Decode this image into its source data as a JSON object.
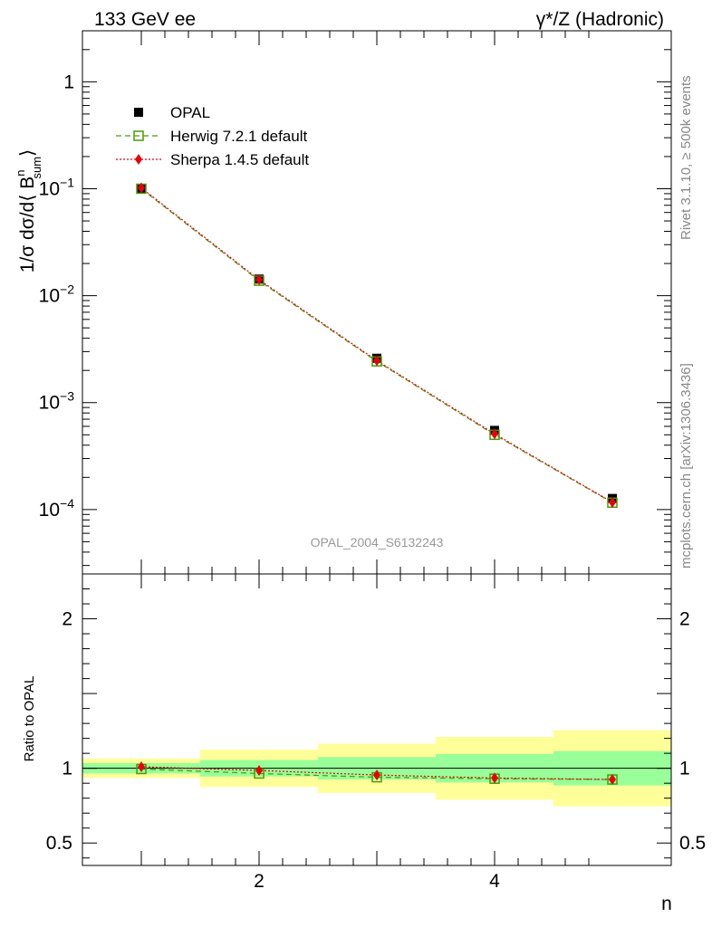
{
  "header": {
    "left": "133 GeV ee",
    "right": "γ*/Z (Hadronic)"
  },
  "side_labels": {
    "rivet": "Rivet 3.1.10, ≥ 500k events",
    "mcplots": "mcplots.cern.ch [arXiv:1306.3436]"
  },
  "analysis_id": "OPAL_2004_S6132243",
  "chart_data": [
    {
      "type": "scatter",
      "panel": "main",
      "yscale": "log",
      "ylabel": {
        "main": "1/σ dσ/d⟨ B",
        "sup": "n",
        "sub": "sum",
        "close": "⟩"
      },
      "xlim": [
        0.5,
        5.5
      ],
      "ylim": [
        2.5e-05,
        3
      ],
      "yticks": [
        {
          "value": 1,
          "label": "1"
        },
        {
          "value": 0.1,
          "base": "10",
          "exp": "−1"
        },
        {
          "value": 0.01,
          "base": "10",
          "exp": "−2"
        },
        {
          "value": 0.001,
          "base": "10",
          "exp": "−3"
        },
        {
          "value": 0.0001,
          "base": "10",
          "exp": "−4"
        }
      ],
      "x": [
        1,
        2,
        3,
        4,
        5
      ],
      "series": [
        {
          "name": "OPAL",
          "color": "#000000",
          "marker": "square",
          "values": [
            0.101,
            0.0143,
            0.0026,
            0.00055,
            0.000127
          ]
        },
        {
          "name": "Herwig 7.2.1 default",
          "color": "#4a9a0a",
          "marker": "open-square",
          "line": "dashed",
          "values": [
            0.1,
            0.0138,
            0.00243,
            0.0005,
            0.000116
          ]
        },
        {
          "name": "Sherpa 1.4.5 default",
          "color": "#e8000b",
          "marker": "diamond",
          "line": "dotted",
          "values": [
            0.102,
            0.0141,
            0.00247,
            0.00051,
            0.000117
          ]
        }
      ]
    },
    {
      "type": "scatter",
      "panel": "ratio",
      "ylabel": "Ratio to OPAL",
      "xlabel": "n",
      "xlim": [
        0.5,
        5.5
      ],
      "ylim": [
        0.35,
        2.3
      ],
      "xticks": [
        {
          "value": 2,
          "label": "2"
        },
        {
          "value": 4,
          "label": "4"
        }
      ],
      "yticks": [
        {
          "value": 0.5,
          "label": "0.5"
        },
        {
          "value": 1,
          "label": "1"
        },
        {
          "value": 2,
          "label": "2"
        }
      ],
      "x": [
        1,
        2,
        3,
        4,
        5
      ],
      "bands": [
        {
          "x0": 0.5,
          "x1": 1.5,
          "stat": [
            0.965,
            1.035
          ],
          "total": [
            0.935,
            1.065
          ]
        },
        {
          "x0": 1.5,
          "x1": 2.5,
          "stat": [
            0.945,
            1.055
          ],
          "total": [
            0.875,
            1.125
          ]
        },
        {
          "x0": 2.5,
          "x1": 3.5,
          "stat": [
            0.925,
            1.075
          ],
          "total": [
            0.835,
            1.165
          ]
        },
        {
          "x0": 3.5,
          "x1": 4.5,
          "stat": [
            0.905,
            1.095
          ],
          "total": [
            0.79,
            1.21
          ]
        },
        {
          "x0": 4.5,
          "x1": 5.5,
          "stat": [
            0.885,
            1.115
          ],
          "total": [
            0.745,
            1.255
          ]
        }
      ],
      "band_colors": {
        "stat": "#99ff99",
        "total": "#ffff99"
      },
      "series": [
        {
          "name": "Herwig 7.2.1 default",
          "color": "#4a9a0a",
          "marker": "open-square",
          "line": "dashed",
          "values": [
            0.995,
            0.965,
            0.94,
            0.93,
            0.925
          ]
        },
        {
          "name": "Sherpa 1.4.5 default",
          "color": "#e8000b",
          "marker": "diamond",
          "line": "dotted",
          "values": [
            1.01,
            0.985,
            0.955,
            0.935,
            0.925
          ]
        }
      ]
    }
  ]
}
